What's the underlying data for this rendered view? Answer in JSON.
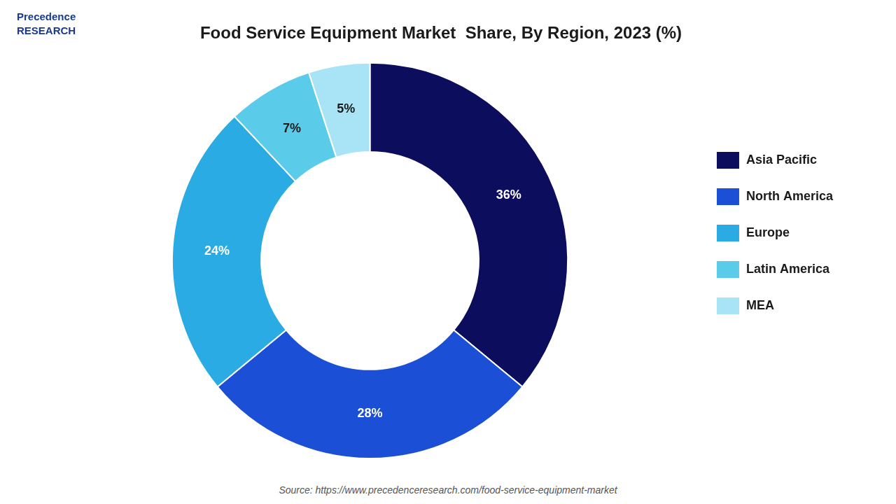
{
  "chart_data": {
    "type": "doughnut",
    "title": "Food Service Equipment Market  Share, By Region, 2023 (%)",
    "categories": [
      "Asia Pacific",
      "North America",
      "Europe",
      "Latin America",
      "MEA"
    ],
    "values": [
      36,
      28,
      24,
      7,
      5
    ],
    "value_labels": [
      "36%",
      "28%",
      "24%",
      "7%",
      "5%"
    ],
    "data_labels": true,
    "colors": [
      "#0d0d5e",
      "#1a4fd6",
      "#2aabe4",
      "#5acbe8",
      "#a8e4f5"
    ],
    "legend": "right",
    "annotations": [
      "Precedence\nRESEARCH",
      "Source: https://www.precedenceresearch.com/food-service-equipment-market"
    ]
  }
}
